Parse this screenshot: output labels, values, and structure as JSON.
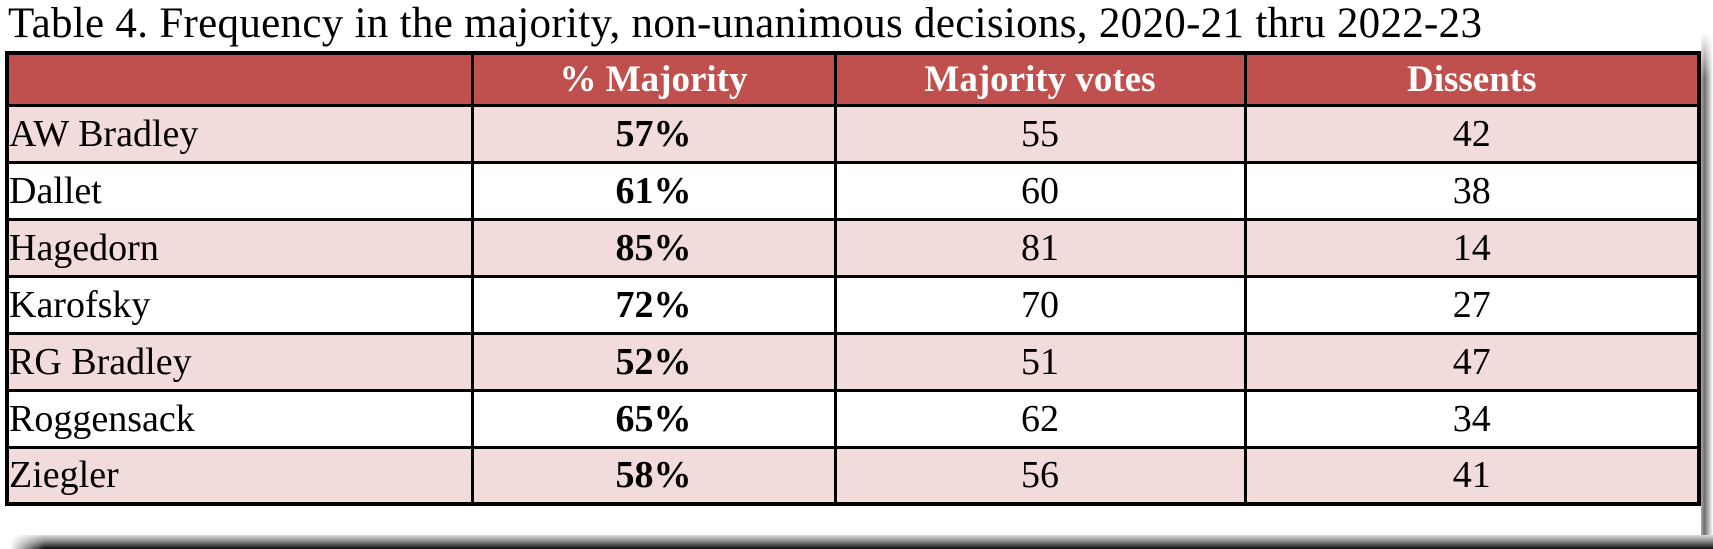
{
  "title": "Table 4. Frequency in the majority, non-unanimous decisions, 2020-21 thru 2022-23",
  "table": {
    "headers": [
      "",
      "% Majority",
      "Majority votes",
      "Dissents"
    ],
    "rows": [
      {
        "name": "AW Bradley",
        "pct": "57%",
        "votes": "55",
        "dissents": "42"
      },
      {
        "name": "Dallet",
        "pct": "61%",
        "votes": "60",
        "dissents": "38"
      },
      {
        "name": "Hagedorn",
        "pct": "85%",
        "votes": "81",
        "dissents": "14"
      },
      {
        "name": "Karofsky",
        "pct": "72%",
        "votes": "70",
        "dissents": "27"
      },
      {
        "name": "RG Bradley",
        "pct": "52%",
        "votes": "51",
        "dissents": "47"
      },
      {
        "name": "Roggensack",
        "pct": "65%",
        "votes": "62",
        "dissents": "34"
      },
      {
        "name": "Ziegler",
        "pct": "58%",
        "votes": "56",
        "dissents": "41"
      }
    ]
  },
  "colors": {
    "header_bg": "#C0504D",
    "header_text": "#FFFFFF",
    "alt_row_bg": "#F2DCDB",
    "row_bg": "#FFFFFF",
    "border": "#000000",
    "title_text": "#000000"
  }
}
